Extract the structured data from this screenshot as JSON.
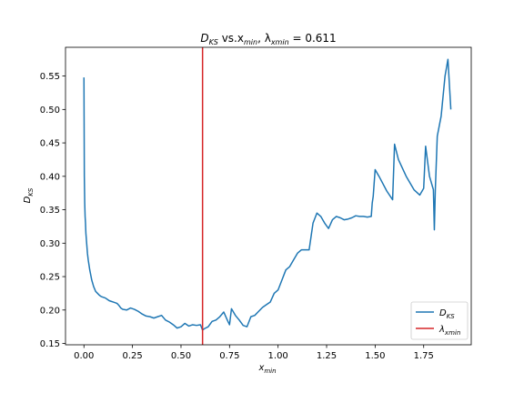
{
  "chart_data": {
    "type": "line",
    "title": {
      "main": "D",
      "main_sub": "KS",
      "middle": " vs.x",
      "middle_sub": "min",
      "lambda_prefix": ",  λ",
      "lambda_sub": "xmin",
      "lambda_value": " = 0.611"
    },
    "xlabel": {
      "base": "x",
      "sub": "min"
    },
    "ylabel": {
      "base": "D",
      "sub": "KS"
    },
    "xlim": [
      -0.095,
      1.995
    ],
    "ylim": [
      0.148,
      0.593
    ],
    "xticks": [
      0.0,
      0.25,
      0.5,
      0.75,
      1.0,
      1.25,
      1.5,
      1.75
    ],
    "xtick_labels": [
      "0.00",
      "0.25",
      "0.50",
      "0.75",
      "1.00",
      "1.25",
      "1.50",
      "1.75"
    ],
    "yticks": [
      0.15,
      0.2,
      0.25,
      0.3,
      0.35,
      0.4,
      0.45,
      0.5,
      0.55
    ],
    "ytick_labels": [
      "0.15",
      "0.20",
      "0.25",
      "0.30",
      "0.35",
      "0.40",
      "0.45",
      "0.50",
      "0.55"
    ],
    "grid": false,
    "legend_position": "lower-right",
    "series": [
      {
        "color": "#1f77b4",
        "legend": {
          "base": "D",
          "sub": "KS"
        },
        "x": [
          0.0,
          0.002,
          0.004,
          0.006,
          0.008,
          0.01,
          0.014,
          0.018,
          0.022,
          0.03,
          0.04,
          0.05,
          0.06,
          0.07,
          0.08,
          0.09,
          0.1,
          0.11,
          0.12,
          0.13,
          0.14,
          0.15,
          0.16,
          0.17,
          0.18,
          0.19,
          0.2,
          0.22,
          0.24,
          0.26,
          0.28,
          0.3,
          0.32,
          0.34,
          0.36,
          0.38,
          0.4,
          0.42,
          0.44,
          0.46,
          0.48,
          0.5,
          0.52,
          0.54,
          0.56,
          0.58,
          0.6,
          0.611,
          0.62,
          0.64,
          0.66,
          0.68,
          0.7,
          0.72,
          0.74,
          0.75,
          0.76,
          0.78,
          0.8,
          0.82,
          0.84,
          0.86,
          0.88,
          0.9,
          0.92,
          0.94,
          0.96,
          0.98,
          1.0,
          1.02,
          1.04,
          1.06,
          1.08,
          1.1,
          1.12,
          1.14,
          1.16,
          1.18,
          1.2,
          1.22,
          1.24,
          1.26,
          1.28,
          1.3,
          1.32,
          1.34,
          1.36,
          1.38,
          1.4,
          1.42,
          1.44,
          1.46,
          1.48,
          1.485,
          1.49,
          1.5,
          1.52,
          1.56,
          1.59,
          1.6,
          1.62,
          1.66,
          1.7,
          1.73,
          1.75,
          1.76,
          1.78,
          1.8,
          1.805,
          1.81,
          1.82,
          1.84,
          1.86,
          1.875,
          1.89
        ],
        "y": [
          0.548,
          0.4,
          0.36,
          0.34,
          0.33,
          0.315,
          0.3,
          0.285,
          0.275,
          0.26,
          0.245,
          0.235,
          0.228,
          0.225,
          0.222,
          0.22,
          0.219,
          0.218,
          0.216,
          0.214,
          0.213,
          0.212,
          0.211,
          0.21,
          0.207,
          0.203,
          0.201,
          0.2,
          0.203,
          0.201,
          0.198,
          0.194,
          0.191,
          0.19,
          0.188,
          0.19,
          0.192,
          0.185,
          0.182,
          0.178,
          0.173,
          0.175,
          0.18,
          0.176,
          0.178,
          0.177,
          0.178,
          0.17,
          0.172,
          0.175,
          0.183,
          0.185,
          0.19,
          0.197,
          0.184,
          0.178,
          0.202,
          0.192,
          0.185,
          0.177,
          0.175,
          0.19,
          0.192,
          0.198,
          0.204,
          0.208,
          0.212,
          0.225,
          0.23,
          0.245,
          0.26,
          0.265,
          0.275,
          0.285,
          0.29,
          0.29,
          0.29,
          0.33,
          0.345,
          0.34,
          0.33,
          0.322,
          0.335,
          0.34,
          0.338,
          0.335,
          0.336,
          0.338,
          0.341,
          0.34,
          0.34,
          0.339,
          0.34,
          0.36,
          0.37,
          0.41,
          0.4,
          0.378,
          0.365,
          0.448,
          0.425,
          0.4,
          0.38,
          0.372,
          0.382,
          0.445,
          0.4,
          0.38,
          0.32,
          0.38,
          0.46,
          0.49,
          0.55,
          0.575,
          0.5
        ]
      },
      {
        "color": "#d62728",
        "legend": {
          "base": "λ",
          "sub": "xmin"
        },
        "vline_x": 0.611
      }
    ]
  }
}
